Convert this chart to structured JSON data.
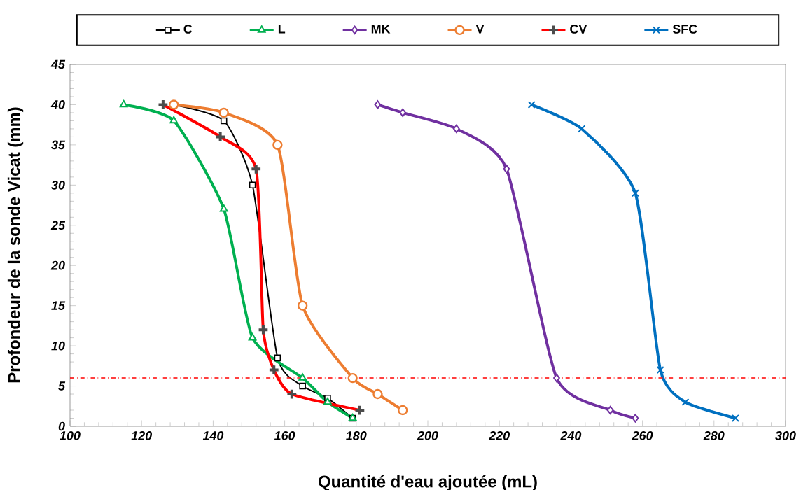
{
  "chart_data": {
    "type": "line",
    "xlabel": "Quantité d'eau ajoutée (mL)",
    "ylabel": "Profondeur de la sonde Vicat (mm)",
    "xlim": [
      100,
      300
    ],
    "xticks": [
      100,
      120,
      140,
      160,
      180,
      200,
      220,
      240,
      260,
      280,
      300
    ],
    "ylim": [
      0,
      45
    ],
    "yticks": [
      0,
      5,
      10,
      15,
      20,
      25,
      30,
      35,
      40,
      45
    ],
    "grid": false,
    "legend": "top",
    "line_style": "solid",
    "series": [
      {
        "name": "C",
        "color": "#000000",
        "marker": "square",
        "x": [
          129,
          143,
          151,
          158,
          165,
          172,
          179
        ],
        "values": [
          40,
          38,
          30,
          8.5,
          5,
          3.5,
          1
        ]
      },
      {
        "name": "L",
        "color": "#00b050",
        "marker": "triangle",
        "x": [
          115,
          129,
          143,
          151,
          165,
          172,
          179
        ],
        "values": [
          40,
          38,
          27,
          11,
          6,
          3,
          1
        ]
      },
      {
        "name": "MK",
        "color": "#7030a0",
        "marker": "diamond",
        "x": [
          186,
          193,
          208,
          222,
          236,
          251,
          258
        ],
        "values": [
          40,
          39,
          37,
          32,
          6,
          2,
          1
        ]
      },
      {
        "name": "V",
        "color": "#ed7d31",
        "marker": "circle",
        "x": [
          129,
          143,
          158,
          165,
          179,
          186,
          193
        ],
        "values": [
          40,
          39,
          35,
          15,
          6,
          4,
          2
        ]
      },
      {
        "name": "CV",
        "color": "#ff0000",
        "marker": "plus",
        "x": [
          126,
          142,
          152,
          154,
          157,
          162,
          181
        ],
        "values": [
          40,
          36,
          32,
          12,
          7,
          4,
          2
        ]
      },
      {
        "name": "SFC",
        "color": "#0070c0",
        "marker": "cross",
        "x": [
          229,
          243,
          258,
          265,
          272,
          286
        ],
        "values": [
          40,
          37,
          29,
          7,
          3,
          1
        ]
      }
    ],
    "ref_lines": [
      {
        "axis": "y",
        "value": 6,
        "color": "#ff0000",
        "line_style": "dashdot"
      }
    ]
  }
}
